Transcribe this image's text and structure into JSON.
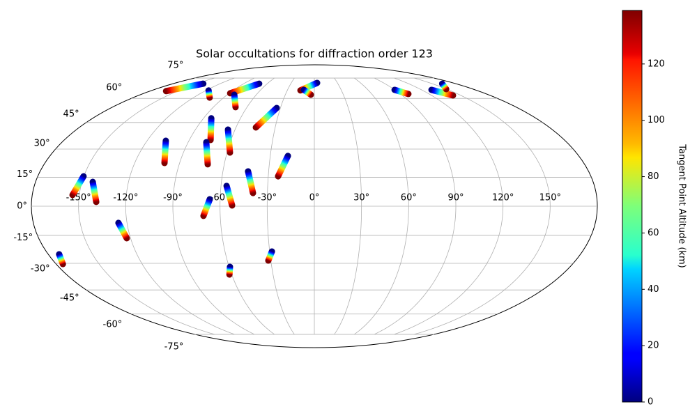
{
  "chart_data": {
    "type": "map",
    "projection": "mollweide",
    "title": "Solar occultations for diffraction order 123",
    "colorbar_label": "Tangent Point Altitude (km)",
    "colormap": "jet",
    "clim": [
      0,
      139
    ],
    "cticks": [
      0,
      20,
      40,
      60,
      80,
      100,
      120
    ],
    "grid": true,
    "xticks": [
      {
        "value": -150,
        "label": "-150°"
      },
      {
        "value": -120,
        "label": "-120°"
      },
      {
        "value": -90,
        "label": "-90°"
      },
      {
        "value": -60,
        "label": "-60°"
      },
      {
        "value": -30,
        "label": "-30°"
      },
      {
        "value": 0,
        "label": "0°"
      },
      {
        "value": 30,
        "label": "30°"
      },
      {
        "value": 60,
        "label": "60°"
      },
      {
        "value": 90,
        "label": "90°"
      },
      {
        "value": 120,
        "label": "120°"
      },
      {
        "value": 150,
        "label": "150°"
      }
    ],
    "yticks": [
      {
        "value": -75,
        "label": "-75°"
      },
      {
        "value": -60,
        "label": "-60°"
      },
      {
        "value": -45,
        "label": "-45°"
      },
      {
        "value": -30,
        "label": "-30°"
      },
      {
        "value": -15,
        "label": "-15°"
      },
      {
        "value": 0,
        "label": "0°"
      },
      {
        "value": 15,
        "label": "15°"
      },
      {
        "value": 30,
        "label": "30°"
      },
      {
        "value": 45,
        "label": "45°"
      },
      {
        "value": 60,
        "label": "60°"
      },
      {
        "value": 75,
        "label": "75°"
      }
    ],
    "altitude": [
      0,
      139
    ],
    "tracks": [
      {
        "lon": [
          -141.5,
          -162.3
        ],
        "lat": [
          70.5,
          65.0
        ]
      },
      {
        "lon": [
          -117.2,
          -103.9
        ],
        "lat": [
          65.5,
          60.5
        ]
      },
      {
        "lon": [
          -70.3,
          -89.0
        ],
        "lat": [
          70.5,
          63.5
        ]
      },
      {
        "lon": [
          -82.8,
          -70.2
        ],
        "lat": [
          62.5,
          54.3
        ]
      },
      {
        "lon": [
          -33.3,
          -44.8
        ],
        "lat": [
          53.8,
          42.1
        ]
      },
      {
        "lon": [
          3.6,
          -15.4
        ],
        "lat": [
          71.1,
          65.5
        ]
      },
      {
        "lon": [
          -11.7,
          -3.6
        ],
        "lat": [
          65.9,
          62.5
        ]
      },
      {
        "lon": [
          89.8,
          98.3
        ],
        "lat": [
          65.9,
          63.0
        ]
      },
      {
        "lon": [
          131.1,
          141.9
        ],
        "lat": [
          65.9,
          62.0
        ]
      },
      {
        "lon": [
          162.9,
          149.4
        ],
        "lat": [
          70.5,
          66.4
        ]
      },
      {
        "lon": [
          -83.7,
          -74.7
        ],
        "lat": [
          47.5,
          35.0
        ]
      },
      {
        "lon": [
          -106.6,
          -100.1
        ],
        "lat": [
          34.6,
          22.5
        ]
      },
      {
        "lon": [
          -77.1,
          -71.0
        ],
        "lat": [
          33.8,
          21.8
        ]
      },
      {
        "lon": [
          -65.4,
          -58.0
        ],
        "lat": [
          40.9,
          28.1
        ]
      },
      {
        "lon": [
          -18.0,
          -23.6
        ],
        "lat": [
          26.3,
          15.5
        ]
      },
      {
        "lon": [
          -43.5,
          -39.2
        ],
        "lat": [
          18.1,
          6.8
        ]
      },
      {
        "lon": [
          -150.2,
          -154.3
        ],
        "lat": [
          15.5,
          5.8
        ]
      },
      {
        "lon": [
          -143.1,
          -138.8
        ],
        "lat": [
          12.6,
          2.2
        ]
      },
      {
        "lon": [
          -56.4,
          -52.3
        ],
        "lat": [
          10.5,
          0.4
        ]
      },
      {
        "lon": [
          -66.6,
          -70.7
        ],
        "lat": [
          3.6,
          -5.0
        ]
      },
      {
        "lon": [
          -125.5,
          -122.5
        ],
        "lat": [
          -8.6,
          -16.6
        ]
      },
      {
        "lon": [
          -172.6,
          -175.3
        ],
        "lat": [
          -25.1,
          -30.4
        ]
      },
      {
        "lon": [
          -59.4,
          -61.7
        ],
        "lat": [
          -31.9,
          -36.2
        ]
      },
      {
        "lon": [
          -28.5,
          -31.7
        ],
        "lat": [
          -23.6,
          -28.5
        ]
      }
    ]
  }
}
